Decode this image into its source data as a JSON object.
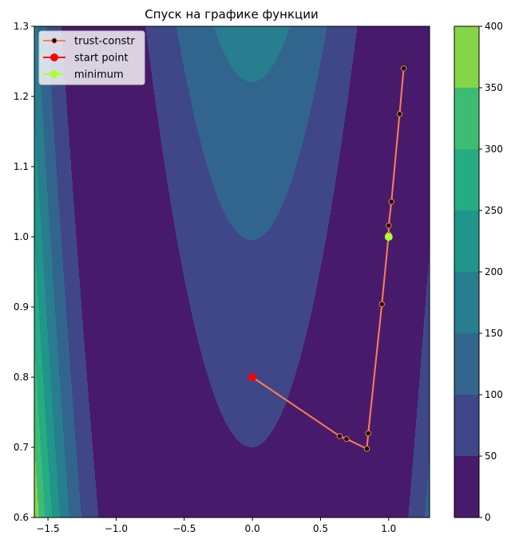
{
  "chart_data": {
    "type": "line",
    "title": "Спуск на графике функции",
    "xlabel": "",
    "ylabel": "",
    "xlim": [
      -1.6,
      1.3
    ],
    "ylim": [
      0.6,
      1.3
    ],
    "x_ticks": [
      "−1.5",
      "−1.0",
      "−0.5",
      "0.0",
      "0.5",
      "1.0"
    ],
    "x_tick_values": [
      -1.5,
      -1.0,
      -0.5,
      0.0,
      0.5,
      1.0
    ],
    "y_ticks": [
      "0.6",
      "0.7",
      "0.8",
      "0.9",
      "1.0",
      "1.1",
      "1.2",
      "1.3"
    ],
    "y_tick_values": [
      0.6,
      0.7,
      0.8,
      0.9,
      1.0,
      1.1,
      1.2,
      1.3
    ],
    "background": {
      "type": "contourf",
      "function": "rosenbrock",
      "levels": [
        0,
        50,
        100,
        150,
        200,
        250,
        300,
        350,
        400
      ],
      "colors": [
        "#481a6c",
        "#3f4788",
        "#32658e",
        "#287d8e",
        "#1f958b",
        "#25ac82",
        "#3fbc73",
        "#86d549",
        "#dde318"
      ]
    },
    "colorbar": {
      "ticks": [
        "0",
        "50",
        "100",
        "150",
        "200",
        "250",
        "300",
        "350",
        "400"
      ],
      "tick_values": [
        0,
        50,
        100,
        150,
        200,
        250,
        300,
        350,
        400
      ]
    },
    "series": [
      {
        "name": "trust-constr",
        "color": "#ff7f50",
        "marker_color": "#000000",
        "x": [
          0.0,
          0.64,
          0.69,
          0.84,
          0.85,
          0.95,
          1.0,
          1.0,
          1.02,
          1.08,
          1.11
        ],
        "y": [
          0.8,
          0.716,
          0.712,
          0.698,
          0.72,
          0.904,
          1.003,
          1.016,
          1.05,
          1.175,
          1.24
        ]
      }
    ],
    "start_point": {
      "name": "start point",
      "color": "#ff0000",
      "x": 0.0,
      "y": 0.8
    },
    "minimum": {
      "name": "minimum",
      "color": "#adff2f",
      "x": 1.0,
      "y": 1.0
    },
    "legend": {
      "position": "top-left"
    }
  }
}
